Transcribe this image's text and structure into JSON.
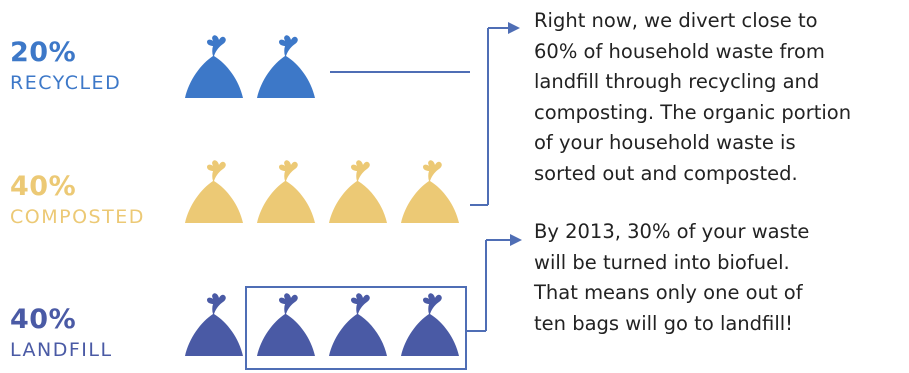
{
  "colors": {
    "recycled": "#3d78c8",
    "composted": "#ecc975",
    "landfill": "#4a5aa5",
    "line": "#4f6eb5",
    "text": "#222222"
  },
  "chart_data": {
    "type": "pictograph",
    "unit": "bag",
    "categories": [
      {
        "key": "recycled",
        "percent": "20%",
        "label": "RECYCLED",
        "value": 20,
        "bags": 2
      },
      {
        "key": "composted",
        "percent": "40%",
        "label": "COMPOSTED",
        "value": 40,
        "bags": 4
      },
      {
        "key": "landfill",
        "percent": "40%",
        "label": "LANDFILL",
        "value": 40,
        "bags": 4
      }
    ]
  },
  "annotations": {
    "now": [
      "Right now, we divert close to",
      "60% of household waste from",
      "landfill through recycling and",
      "composting. The organic portion",
      "of your household waste is",
      "sorted out and composted."
    ],
    "future": [
      "By 2013, 30% of your waste",
      "will be turned into biofuel.",
      "That means only one out of",
      "ten bags will go to landfill!"
    ]
  }
}
